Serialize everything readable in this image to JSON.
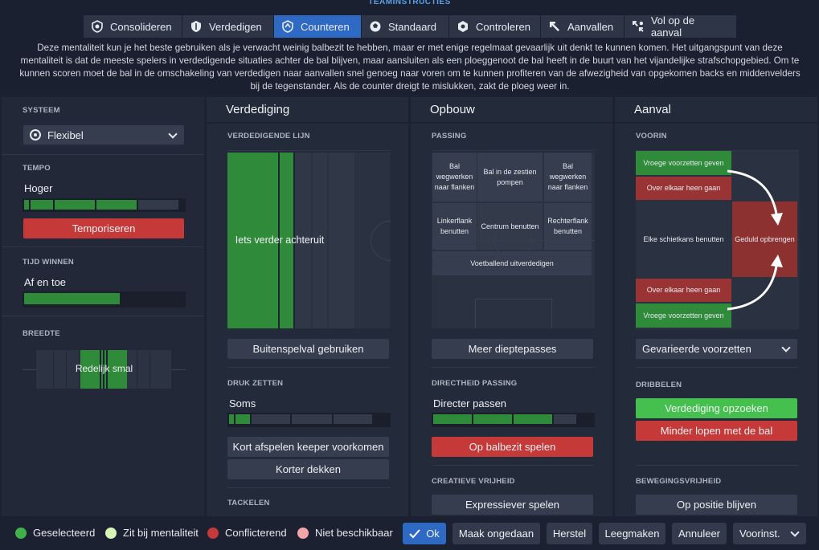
{
  "header": {
    "title": "TEAMINSTRUCTIES",
    "tabs": [
      {
        "label": "Consolideren",
        "icon": "consolidate-icon",
        "active": false
      },
      {
        "label": "Verdedigen",
        "icon": "shield-icon",
        "active": false
      },
      {
        "label": "Counteren",
        "icon": "counter-icon",
        "active": true
      },
      {
        "label": "Standaard",
        "icon": "standard-icon",
        "active": false
      },
      {
        "label": "Controleren",
        "icon": "control-icon",
        "active": false
      },
      {
        "label": "Aanvallen",
        "icon": "attack-arrow-icon",
        "active": false
      },
      {
        "label": "Vol op de aanval",
        "icon": "all-out-attack-icon",
        "active": false
      }
    ],
    "description": "Deze mentaliteit kun je het beste gebruiken als je verwacht weinig balbezit te hebben, maar er met enige regelmaat gevaarlijk uit denkt te kunnen komen. Het uitgangspunt van deze mentaliteit is dat de meeste spelers in verdedigende situaties achter de bal blijven, maar aansluiten als een ploeggenoot de bal heeft in de buurt van het vijandelijke strafschopgebied. Om te kunnen scoren moet de bal in de omschakeling van verdedigen naar aanvallen snel genoeg naar voren om te kunnen profiteren van de afwezigheid van opgekomen backs en middenvelders bij de tegenstander. Als de counter dreigt te mislukken, zakt de ploeg weer in."
  },
  "left": {
    "system_label": "SYSTEEM",
    "system_value": "Flexibel",
    "tempo_label": "TEMPO",
    "tempo_value": "Hoger",
    "tempo_level": 4,
    "tempo_button": "Temporiseren",
    "time_label": "TIJD WINNEN",
    "time_value": "Af en toe",
    "breedte_label": "BREEDTE",
    "breedte_value": "Redelijk smal"
  },
  "defense": {
    "title": "Verdediging",
    "line_label": "VERDEDIGENDE LIJN",
    "line_value": "Iets verder achteruit",
    "offside_button": "Buitenspelval gebruiken",
    "press_label": "DRUK ZETTEN",
    "press_value": "Soms",
    "press_level": 2,
    "keeper_button": "Kort afspelen keeper voorkomen",
    "mark_button": "Korter dekken",
    "tackle_label": "TACKELEN"
  },
  "buildup": {
    "title": "Opbouw",
    "passing_label": "PASSING",
    "cells": {
      "left_flank": "Bal wegwerken naar flanken",
      "zestien": "Bal in de zestien pompen",
      "right_flank": "Bal wegwerken naar flanken",
      "left_use": "Linkerflank benutten",
      "center_use": "Centrum benutten",
      "right_use": "Rechterflank benutten",
      "play_out": "Voetballend uitverdedigen"
    },
    "depth_button": "Meer dieptepasses",
    "directness_label": "DIRECTHEID PASSING",
    "directness_value": "Directer passen",
    "possession_button": "Op balbezit spelen",
    "creative_label": "CREATIEVE VRIJHEID",
    "expressive_button": "Expressiever spelen"
  },
  "attack": {
    "title": "Aanval",
    "forward_label": "VOORIN",
    "cells": {
      "early_cross_top": "Vroege voorzetten geven",
      "overlap_top": "Over elkaar heen gaan",
      "shoot": "Elke schietkans benutten",
      "patience": "Geduld opbrengen",
      "overlap_bottom": "Over elkaar heen gaan",
      "early_cross_bottom": "Vroege voorzetten geven"
    },
    "cross_select": "Gevarieerde voorzetten",
    "dribble_label": "DRIBBELEN",
    "dribble_green": "Verdediging opzoeken",
    "dribble_red": "Minder lopen met de bal",
    "movement_label": "BEWEGINGSVRIJHEID",
    "position_button": "Op positie blijven"
  },
  "footer": {
    "legend": [
      {
        "label": "Geselecteerd",
        "color": "#3fb34a"
      },
      {
        "label": "Zit bij mentaliteit",
        "color": "#d8f5b8"
      },
      {
        "label": "Conflicterend",
        "color": "#c63939"
      },
      {
        "label": "Niet beschikbaar",
        "color": "#f0a6a6"
      }
    ],
    "ok": "Ok",
    "undo": "Maak ongedaan",
    "reset": "Herstel",
    "clear": "Leegmaken",
    "cancel": "Annuleer",
    "presets": "Voorinst."
  }
}
